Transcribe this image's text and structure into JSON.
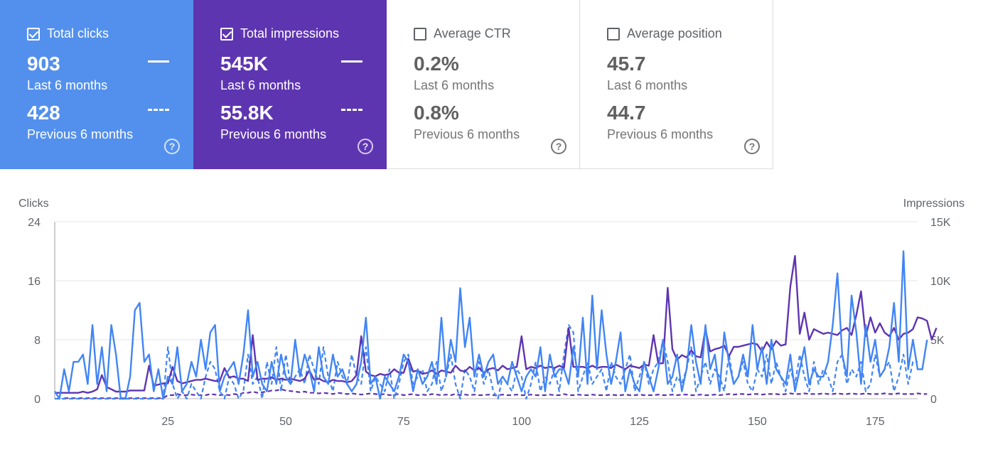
{
  "cards": [
    {
      "label": "Total clicks",
      "checked": true,
      "value_current": "903",
      "label_current": "Last 6 months",
      "value_previous": "428",
      "label_previous": "Previous 6 months",
      "color": "#5390ed"
    },
    {
      "label": "Total impressions",
      "checked": true,
      "value_current": "545K",
      "label_current": "Last 6 months",
      "value_previous": "55.8K",
      "label_previous": "Previous 6 months",
      "color": "#5e35b1"
    },
    {
      "label": "Average CTR",
      "checked": false,
      "value_current": "0.2%",
      "label_current": "Last 6 months",
      "value_previous": "0.8%",
      "label_previous": "Previous 6 months",
      "color": "#ffffff"
    },
    {
      "label": "Average position",
      "checked": false,
      "value_current": "45.7",
      "label_current": "Last 6 months",
      "value_previous": "44.7",
      "label_previous": "Previous 6 months",
      "color": "#ffffff"
    }
  ],
  "help_glyph": "?",
  "chart_data": {
    "type": "line",
    "ylabel": "Clicks",
    "y2label": "Impressions",
    "ylim": [
      0,
      24
    ],
    "y2lim": [
      0,
      15000
    ],
    "yticks": [
      "0",
      "8",
      "16",
      "24"
    ],
    "y2ticks": [
      "0",
      "5K",
      "10K",
      "15K"
    ],
    "xticks": [
      "25",
      "50",
      "75",
      "100",
      "125",
      "150",
      "175"
    ],
    "xlim": [
      1,
      184
    ],
    "grid": true,
    "series": [
      {
        "name": "Total clicks",
        "axis": "left",
        "style": "solid",
        "color": "#4285f4",
        "values": [
          1,
          0,
          4,
          1,
          5,
          5,
          6,
          2,
          10,
          2,
          7,
          1,
          10,
          6,
          0,
          0,
          3,
          12,
          13,
          5,
          6,
          1,
          4,
          0,
          3,
          2,
          7,
          1,
          2,
          5,
          3,
          8,
          4,
          9,
          10,
          1,
          3,
          4,
          5,
          2,
          6,
          12,
          3,
          5,
          2,
          1,
          5,
          2,
          6,
          3,
          2,
          8,
          3,
          6,
          4,
          1,
          7,
          3,
          2,
          6,
          3,
          4,
          2,
          1,
          2,
          5,
          11,
          2,
          3,
          0,
          3,
          2,
          1,
          3,
          6,
          5,
          1,
          4,
          2,
          3,
          5,
          2,
          11,
          3,
          8,
          5,
          15,
          7,
          11,
          3,
          6,
          3,
          5,
          6,
          2,
          3,
          2,
          5,
          3,
          1,
          3,
          4,
          3,
          7,
          1,
          6,
          3,
          4,
          4,
          2,
          7,
          3,
          11,
          2,
          14,
          4,
          12,
          6,
          2,
          5,
          9,
          1,
          4,
          2,
          1,
          5,
          3,
          1,
          4,
          8,
          2,
          3,
          6,
          1,
          4,
          10,
          5,
          2,
          10,
          4,
          6,
          1,
          9,
          5,
          2,
          3,
          6,
          3,
          10,
          4,
          7,
          2,
          8,
          4,
          3,
          2,
          6,
          1,
          4,
          7,
          2,
          4,
          3,
          3,
          5,
          10,
          17,
          6,
          3,
          14,
          9,
          2,
          10,
          5,
          8,
          3,
          4,
          7,
          13,
          5,
          20,
          4,
          8,
          4,
          4,
          8
        ]
      },
      {
        "name": "Total impressions",
        "axis": "right",
        "style": "solid",
        "color": "#5e35b1",
        "values": [
          500,
          500,
          500,
          500,
          500,
          500,
          600,
          500,
          600,
          800,
          2000,
          1000,
          800,
          600,
          600,
          600,
          700,
          700,
          700,
          700,
          2800,
          1100,
          1200,
          1300,
          1300,
          2700,
          1500,
          1300,
          1400,
          1500,
          1600,
          1600,
          1700,
          1600,
          1500,
          1500,
          2600,
          1800,
          1900,
          1700,
          1700,
          1500,
          5400,
          1600,
          1700,
          1700,
          1800,
          1600,
          1700,
          1600,
          1700,
          1600,
          1500,
          1700,
          2400,
          1600,
          1700,
          1500,
          1400,
          1600,
          1500,
          1500,
          1400,
          1500,
          2000,
          5300,
          2300,
          2000,
          1900,
          2100,
          2000,
          2100,
          2500,
          2200,
          2200,
          3400,
          2300,
          2400,
          2100,
          2200,
          2400,
          2100,
          2400,
          2300,
          2200,
          2800,
          2400,
          2300,
          2700,
          2400,
          2600,
          2200,
          2500,
          2600,
          2400,
          2800,
          2500,
          2600,
          2700,
          5300,
          2500,
          2700,
          2600,
          2800,
          2600,
          2700,
          2600,
          2800,
          2600,
          6000,
          2700,
          2700,
          2700,
          2600,
          2800,
          2600,
          2700,
          2700,
          2600,
          2900,
          2700,
          2500,
          2800,
          2700,
          2600,
          2900,
          2800,
          5400,
          3000,
          3000,
          9400,
          4200,
          3300,
          3700,
          3500,
          4100,
          3600,
          3500,
          5900,
          4000,
          4200,
          4300,
          4500,
          3600,
          4400,
          4400,
          4500,
          4600,
          4700,
          4600,
          4000,
          4800,
          4200,
          4900,
          4500,
          4600,
          9500,
          12100,
          5500,
          7300,
          5000,
          5900,
          5700,
          5500,
          5600,
          5500,
          5400,
          5800,
          6000,
          5400,
          7100,
          9100,
          5300,
          6900,
          5600,
          6400,
          5600,
          5300,
          6000,
          5000,
          5500,
          5600,
          5900,
          6900,
          6800,
          6600,
          5000,
          6000
        ]
      },
      {
        "name": "Previous clicks",
        "axis": "left",
        "style": "dashed",
        "color": "#4285f4",
        "values": [
          0,
          0,
          0,
          0,
          0,
          0,
          0,
          0,
          0,
          0,
          0,
          0,
          0,
          0,
          0,
          0,
          0,
          0,
          0,
          0,
          0,
          0,
          0,
          0,
          7,
          2,
          0,
          1,
          0,
          2,
          1,
          0,
          3,
          5,
          4,
          1,
          0,
          3,
          2,
          0,
          1,
          6,
          2,
          3,
          0,
          5,
          2,
          7,
          1,
          6,
          2,
          3,
          4,
          2,
          6,
          4,
          2,
          7,
          3,
          1,
          5,
          3,
          2,
          6,
          3,
          2,
          7,
          1,
          3,
          2,
          1,
          4,
          0,
          2,
          5,
          6,
          2,
          3,
          4,
          1,
          2,
          5,
          1,
          3,
          6,
          2,
          0,
          4,
          3,
          1,
          5,
          2,
          4,
          1,
          0,
          3,
          2,
          1,
          4,
          3,
          0,
          2,
          5,
          1,
          3,
          2,
          4,
          1,
          6,
          10,
          9,
          1,
          3,
          5,
          2,
          3,
          4,
          1,
          5,
          3,
          2,
          4,
          6,
          1,
          3,
          5,
          2,
          4,
          5,
          8,
          5,
          1,
          3,
          2,
          4,
          7,
          1,
          3,
          5,
          2,
          4,
          3,
          1,
          6,
          2,
          3,
          5,
          2,
          1,
          4,
          3,
          6,
          2,
          5,
          3,
          1,
          4,
          2,
          6,
          3,
          1,
          5,
          2,
          4,
          3,
          1,
          5,
          6,
          2,
          4,
          3,
          5,
          1,
          2,
          6,
          3,
          4,
          5,
          1,
          3,
          6,
          2,
          5,
          5
        ]
      },
      {
        "name": "Previous impressions",
        "axis": "right",
        "style": "dashed",
        "color": "#5e35b1",
        "values": [
          50,
          50,
          50,
          50,
          50,
          50,
          50,
          50,
          50,
          50,
          50,
          50,
          50,
          50,
          50,
          50,
          50,
          50,
          50,
          50,
          50,
          50,
          300,
          300,
          400,
          300,
          300,
          350,
          300,
          300,
          300,
          400,
          350,
          300,
          350,
          300,
          400,
          350,
          500,
          500,
          600,
          500,
          550,
          600,
          700,
          700,
          800,
          700,
          650,
          600,
          550,
          600,
          500,
          500,
          450,
          500,
          450,
          400,
          500,
          450,
          400,
          450,
          400,
          350,
          400,
          450,
          400,
          350,
          400,
          300,
          350,
          400,
          300,
          350,
          400,
          300,
          350,
          300,
          400,
          350,
          300,
          350,
          300,
          400,
          300,
          350,
          300,
          350,
          300,
          300,
          350,
          300,
          300,
          350,
          300,
          300,
          350,
          300,
          300,
          350,
          300,
          300,
          300,
          350,
          300,
          300,
          400,
          300,
          300,
          350,
          300,
          300,
          350,
          300,
          300,
          300,
          350,
          300,
          300,
          350,
          300,
          300,
          350,
          300,
          300,
          300,
          350,
          300,
          300,
          350,
          300,
          350,
          350,
          300,
          300,
          350,
          300,
          300,
          350,
          300,
          350,
          400,
          350,
          400,
          400,
          350,
          400,
          400,
          350,
          400,
          400,
          400,
          350,
          400,
          450,
          400,
          400,
          450,
          400,
          400,
          400,
          450,
          400,
          400,
          450,
          400,
          400,
          450,
          400,
          400,
          450,
          400,
          400,
          400,
          450,
          400,
          400,
          450,
          400,
          400,
          400,
          450,
          400,
          400
        ]
      }
    ]
  }
}
